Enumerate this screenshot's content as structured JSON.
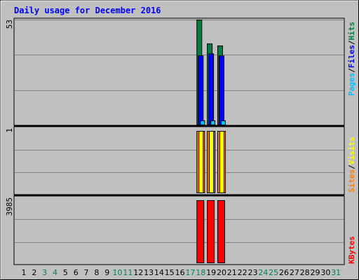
{
  "chart_data": {
    "type": "bar",
    "title": "Daily usage for December 2016",
    "days": [
      "1",
      "2",
      "3",
      "4",
      "5",
      "6",
      "7",
      "8",
      "9",
      "10",
      "11",
      "12",
      "13",
      "14",
      "15",
      "16",
      "17",
      "18",
      "19",
      "20",
      "21",
      "22",
      "23",
      "24",
      "25",
      "26",
      "27",
      "28",
      "29",
      "30",
      "31"
    ],
    "weekend_days": [
      "3",
      "4",
      "10",
      "11",
      "17",
      "18",
      "24",
      "25",
      "31"
    ],
    "panels": [
      {
        "id": "top",
        "scale_label": "53",
        "ymax": 53,
        "series": [
          {
            "name": "Hits",
            "color": "#008040",
            "values": {
              "18": 53,
              "19": 41,
              "20": 40
            }
          },
          {
            "name": "Files",
            "color": "#0000FF",
            "values": {
              "18": 35,
              "19": 36,
              "20": 35
            }
          },
          {
            "name": "Pages",
            "color": "#00C0FF",
            "values": {
              "18": 2,
              "19": 2,
              "20": 1
            }
          }
        ],
        "legend": [
          "Pages",
          "/",
          "Files",
          "/",
          "Hits"
        ]
      },
      {
        "id": "mid",
        "scale_label": "1",
        "ymax": 1,
        "series": [
          {
            "name": "Sites",
            "color": "#FF8000",
            "values": {
              "18": 1,
              "19": 1,
              "20": 1
            }
          },
          {
            "name": "Visits",
            "color": "#FFFF00",
            "values": {
              "18": 1,
              "19": 1,
              "20": 1
            }
          }
        ],
        "legend": [
          "Sites",
          "/",
          "Visits"
        ]
      },
      {
        "id": "bot",
        "scale_label": "3985",
        "ymax": 3985,
        "series": [
          {
            "name": "KBytes",
            "color": "#FF0000",
            "values": {
              "18": 3985,
              "19": 3985,
              "20": 3985
            }
          }
        ],
        "legend": [
          "KBytes"
        ]
      }
    ],
    "colors": {
      "background": "#C0C0C0",
      "title": "#0000FF",
      "gridline": "#808080",
      "weekday_label": "#000000",
      "weekend_label": "#00805C",
      "legend_separator": "#000000"
    }
  }
}
